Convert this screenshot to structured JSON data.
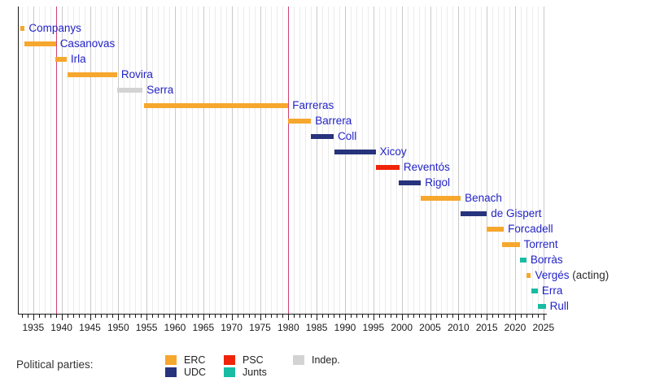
{
  "chart_data": {
    "type": "gantt",
    "title": "",
    "description": "Timeline of presidents with political party affiliation shown as colored horizontal bars",
    "x_axis": {
      "min": 1932.3,
      "max": 2025.6,
      "tick_start": 1935,
      "tick_end": 2025,
      "tick_step": 5,
      "minor_step": 1,
      "tick_labels": [
        "1935",
        "1940",
        "1945",
        "1950",
        "1955",
        "1960",
        "1965",
        "1970",
        "1975",
        "1980",
        "1985",
        "1990",
        "1995",
        "2000",
        "2005",
        "2010",
        "2015",
        "2020",
        "2025"
      ]
    },
    "grid": {
      "minor_color": "#ebebeb",
      "major_color": "#c9c9c9"
    },
    "vertical_markers": [
      {
        "year": 1939,
        "color": "#cf4070"
      },
      {
        "year": 1980,
        "color": "#cf4070"
      }
    ],
    "party_colors": {
      "ERC": "#f6a72e",
      "UDC": "#27337d",
      "PSC": "#ef2409",
      "Junts": "#17bca3",
      "Indep.": "#d3d3d3"
    },
    "people": [
      {
        "name": "Companys",
        "suffix": "",
        "party": "ERC",
        "start": 1932.7,
        "end": 1933.5
      },
      {
        "name": "Casanovas",
        "suffix": "",
        "party": "ERC",
        "start": 1933.5,
        "end": 1939.0
      },
      {
        "name": "Irla",
        "suffix": "",
        "party": "ERC",
        "start": 1938.9,
        "end": 1940.9
      },
      {
        "name": "Rovira",
        "suffix": "",
        "party": "ERC",
        "start": 1941.0,
        "end": 1949.8
      },
      {
        "name": "Serra",
        "suffix": "",
        "party": "Indep.",
        "start": 1949.8,
        "end": 1954.3
      },
      {
        "name": "Farreras",
        "suffix": "",
        "party": "ERC",
        "start": 1954.5,
        "end": 1980.0
      },
      {
        "name": "Barrera",
        "suffix": "",
        "party": "ERC",
        "start": 1980.0,
        "end": 1984.0
      },
      {
        "name": "Coll",
        "suffix": "",
        "party": "UDC",
        "start": 1984.0,
        "end": 1988.0
      },
      {
        "name": "Xicoy",
        "suffix": "",
        "party": "UDC",
        "start": 1988.2,
        "end": 1995.4
      },
      {
        "name": "Reventós",
        "suffix": "",
        "party": "PSC",
        "start": 1995.5,
        "end": 1999.6
      },
      {
        "name": "Rigol",
        "suffix": "",
        "party": "UDC",
        "start": 1999.4,
        "end": 2003.4
      },
      {
        "name": "Benach",
        "suffix": "",
        "party": "ERC",
        "start": 2003.3,
        "end": 2010.4
      },
      {
        "name": "de Gispert",
        "suffix": "",
        "party": "UDC",
        "start": 2010.4,
        "end": 2015.0
      },
      {
        "name": "Forcadell",
        "suffix": "",
        "party": "ERC",
        "start": 2015.0,
        "end": 2018.0
      },
      {
        "name": "Torrent",
        "suffix": "",
        "party": "ERC",
        "start": 2017.7,
        "end": 2020.8
      },
      {
        "name": "Borràs",
        "suffix": "",
        "party": "Junts",
        "start": 2020.8,
        "end": 2022.0
      },
      {
        "name": "Vergés",
        "suffix": " (acting)",
        "party": "ERC",
        "start": 2022.0,
        "end": 2022.8
      },
      {
        "name": "Erra",
        "suffix": "",
        "party": "Junts",
        "start": 2022.9,
        "end": 2024.0
      },
      {
        "name": "Rull",
        "suffix": "",
        "party": "Junts",
        "start": 2024.0,
        "end": 2025.4
      }
    ],
    "legend": {
      "label": "Political parties:",
      "entries": [
        {
          "label": "ERC",
          "color": "#f6a72e"
        },
        {
          "label": "UDC",
          "color": "#27337d"
        },
        {
          "label": "PSC",
          "color": "#ef2409"
        },
        {
          "label": "Junts",
          "color": "#17bca3"
        },
        {
          "label": "Indep.",
          "color": "#d3d3d3"
        }
      ]
    },
    "text_color_names": "#2323c8"
  }
}
